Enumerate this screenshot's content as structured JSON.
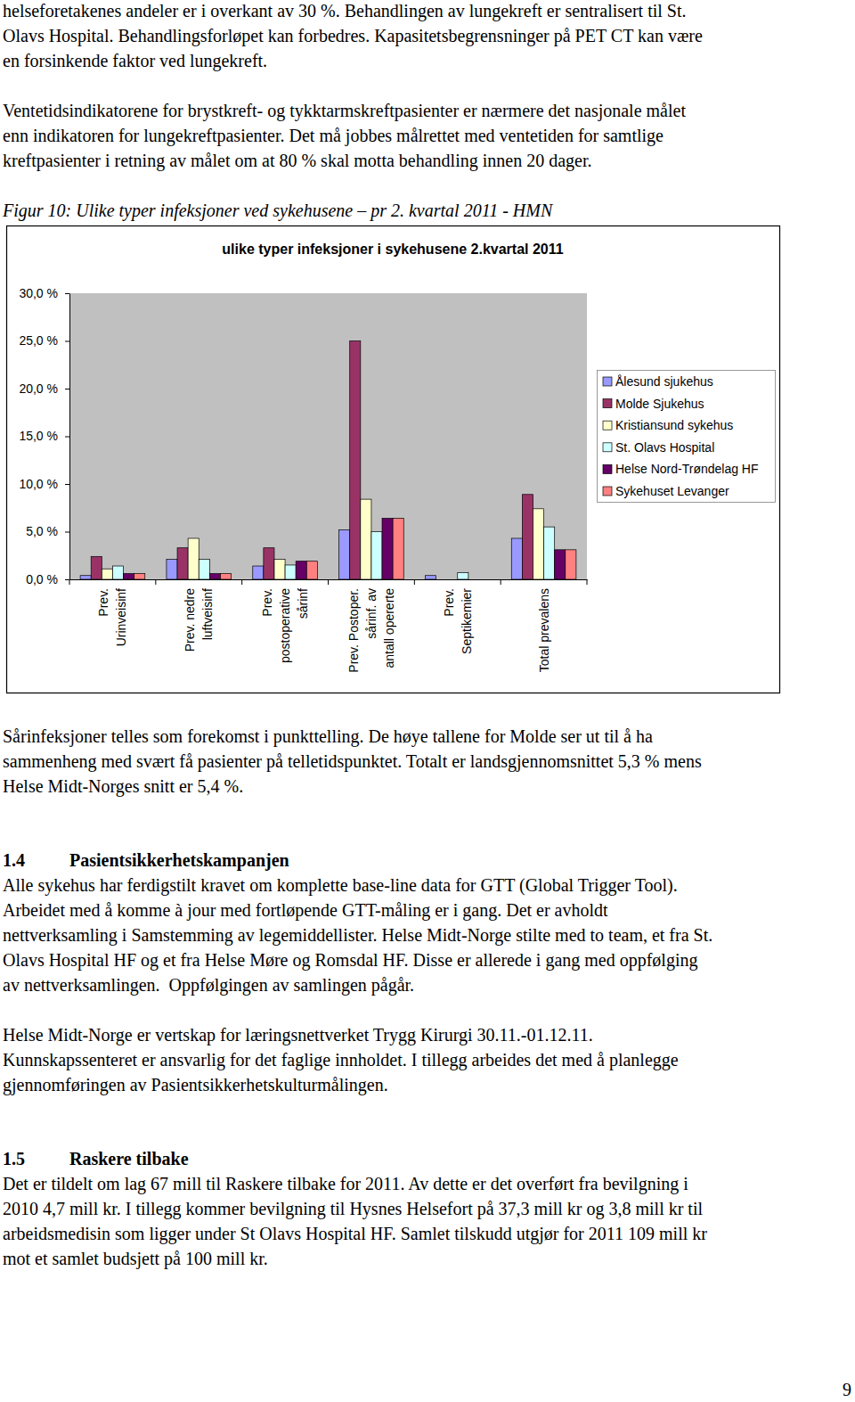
{
  "page": {
    "before_figure": [
      {
        "type": "paragraph",
        "lines": [
          "helseforetakenes andeler er i overkant av 30 %. Behandlingen av lungekreft er sentralisert til St.",
          "Olavs Hospital. Behandlingsforløpet kan forbedres. Kapasitetsbegrensninger på PET CT kan være",
          "en forsinkende faktor ved lungekreft."
        ]
      },
      {
        "type": "paragraph",
        "lines": [
          "Ventetidsindikatorene for brystkreft- og tykktarmskreftpasienter er nærmere det nasjonale målet",
          "enn indikatoren for lungekreftpasienter. Det må jobbes målrettet med ventetiden for samtlige",
          "kreftpasienter i retning av målet om at 80 % skal motta behandling innen 20 dager."
        ]
      }
    ],
    "caption": "Figur 10: Ulike typer infeksjoner ved sykehusene – pr 2. kvartal 2011 - HMN",
    "after_figure": [
      {
        "type": "paragraph",
        "lines": [
          "Sårinfeksjoner telles som forekomst i punkttelling. De høye tallene for Molde ser ut til å ha",
          "sammenheng med svært få pasienter på telletidspunktet. Totalt er landsgjennomsnittet 5,3 % mens",
          "Helse Midt-Norges snitt er 5,4 %."
        ]
      },
      {
        "type": "heading",
        "number": "1.4",
        "title": "Pasientsikkerhetskampanjen"
      },
      {
        "type": "paragraph",
        "lines": [
          "Alle sykehus har ferdigstilt kravet om komplette base-line data for GTT (Global Trigger Tool).",
          "Arbeidet med å komme à jour med fortløpende GTT-måling er i gang. Det er avholdt",
          "nettverksamling i Samstemming av legemiddellister. Helse Midt-Norge stilte med to team, et fra St.",
          "Olavs Hospital HF og et fra Helse Møre og Romsdal HF. Disse er allerede i gang med oppfølging",
          "av nettverksamlingen.  Oppfølgingen av samlingen pågår."
        ]
      },
      {
        "type": "paragraph",
        "lines": [
          "Helse Midt-Norge er vertskap for læringsnettverket Trygg Kirurgi 30.11.-01.12.11.",
          "Kunnskapssenteret er ansvarlig for det faglige innholdet. I tillegg arbeides det med å planlegge",
          "gjennomføringen av Pasientsikkerhetskulturmålingen."
        ]
      },
      {
        "type": "heading",
        "number": "1.5",
        "title": "Raskere tilbake"
      },
      {
        "type": "paragraph",
        "lines": [
          "Det er tildelt om lag 67 mill til Raskere tilbake for 2011. Av dette er det overført fra bevilgning i",
          "2010 4,7 mill kr. I tillegg kommer bevilgning til Hysnes Helsefort på 37,3 mill kr og 3,8 mill kr til",
          "arbeidsmedisin som ligger under St Olavs Hospital HF. Samlet tilskudd utgjør for 2011 109 mill kr",
          "mot et samlet budsjett på 100 mill kr."
        ]
      }
    ],
    "page_number": "9"
  },
  "chart_data": {
    "type": "bar",
    "title": "ulike typer infeksjoner i sykehusene 2.kvartal 2011",
    "categories": [
      "Prev. Urinveisinf",
      "Prev. nedre luftveisinf",
      "Prev. postoperative sårinf",
      "Prev. Postoper. sårinf. av antall opererte",
      "Prev. Septikemier",
      "Total prevalens"
    ],
    "series": [
      {
        "name": "Ålesund sjukehus",
        "color": "#9999FF",
        "values": [
          0.4,
          2.1,
          1.4,
          5.2,
          0.4,
          4.3
        ]
      },
      {
        "name": "Molde Sjukehus",
        "color": "#993366",
        "values": [
          2.4,
          3.3,
          3.3,
          25.0,
          0,
          8.9
        ]
      },
      {
        "name": "Kristiansund sykehus",
        "color": "#FFFFCC",
        "values": [
          1.1,
          4.3,
          2.1,
          8.4,
          0,
          7.4
        ]
      },
      {
        "name": "St. Olavs Hospital",
        "color": "#CCFFFF",
        "values": [
          1.4,
          2.1,
          1.5,
          5.0,
          0.7,
          5.5
        ]
      },
      {
        "name": "Helse Nord-Trøndelag HF",
        "color": "#660066",
        "values": [
          0.6,
          0.6,
          1.9,
          6.4,
          0,
          3.1
        ]
      },
      {
        "name": "Sykehuset Levanger",
        "color": "#FF8080",
        "values": [
          0.6,
          0.6,
          1.9,
          6.4,
          0,
          3.1
        ]
      }
    ],
    "ylim": [
      0,
      30
    ],
    "yticks": [
      {
        "value": 0,
        "label": "0,0 %"
      },
      {
        "value": 5,
        "label": "5,0 %"
      },
      {
        "value": 10,
        "label": "10,0 %"
      },
      {
        "value": 15,
        "label": "15,0 %"
      },
      {
        "value": 20,
        "label": "20,0 %"
      },
      {
        "value": 25,
        "label": "25,0 %"
      },
      {
        "value": 30,
        "label": "30,0 %"
      }
    ],
    "grid": false,
    "legend": "right"
  }
}
